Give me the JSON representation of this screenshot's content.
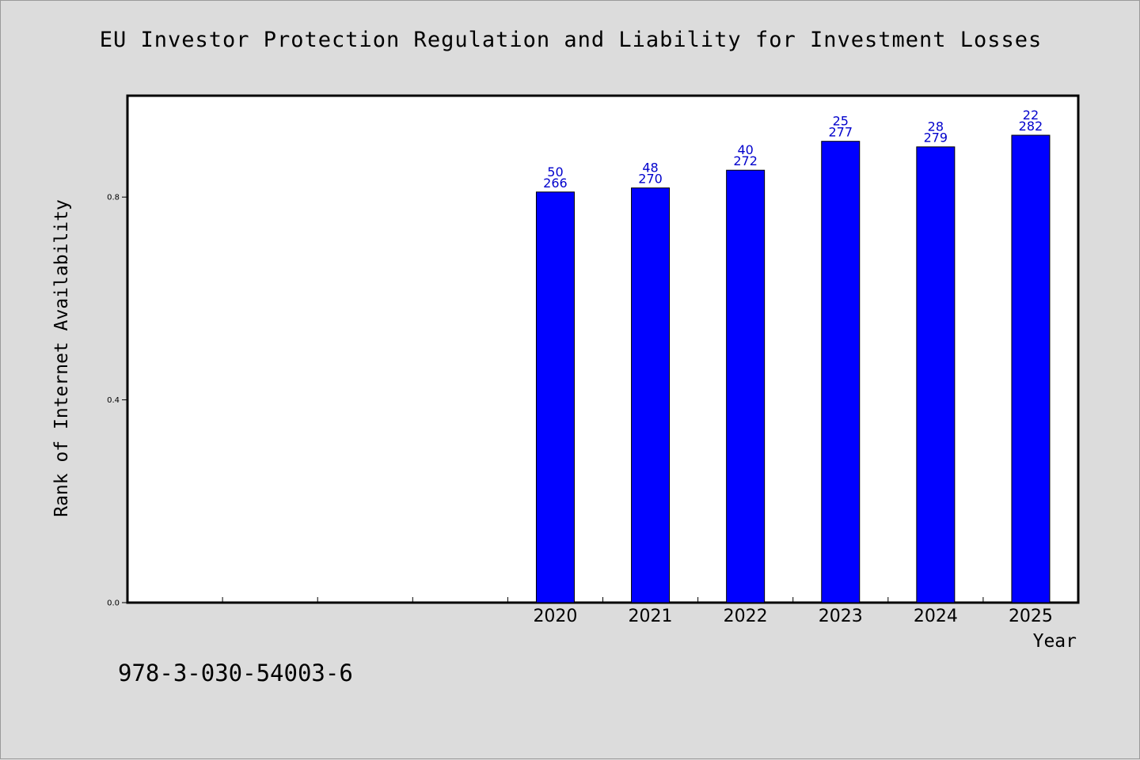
{
  "title": "EU Investor Protection Regulation and Liability for Investment Losses",
  "footer_text": "978-3-030-54003-6",
  "chart_data": {
    "type": "bar",
    "title": "EU Investor Protection Regulation and Liability for Investment Losses",
    "xlabel": "Year",
    "ylabel": "Rank of Internet Availability",
    "categories": [
      "",
      "",
      "",
      "",
      "2020",
      "2021",
      "2022",
      "2023",
      "2024",
      "2025"
    ],
    "series": [
      {
        "values": [
          null,
          null,
          null,
          null,
          0.81,
          0.818,
          0.853,
          0.91,
          0.899,
          0.922
        ],
        "top_labels": [
          "",
          "",
          "",
          "",
          "50",
          "48",
          "40",
          "25",
          "28",
          "22"
        ],
        "bottom_labels": [
          "",
          "",
          "",
          "",
          "266",
          "270",
          "272",
          "277",
          "279",
          "282"
        ]
      }
    ],
    "ylim": [
      0,
      1.0
    ],
    "yticks": [
      "0.0",
      "0.4",
      "0.8"
    ],
    "ytick_values": [
      0,
      0.4,
      0.8
    ],
    "grid": false,
    "bar_color": "#0000ff",
    "label_color": "#0000cc"
  }
}
